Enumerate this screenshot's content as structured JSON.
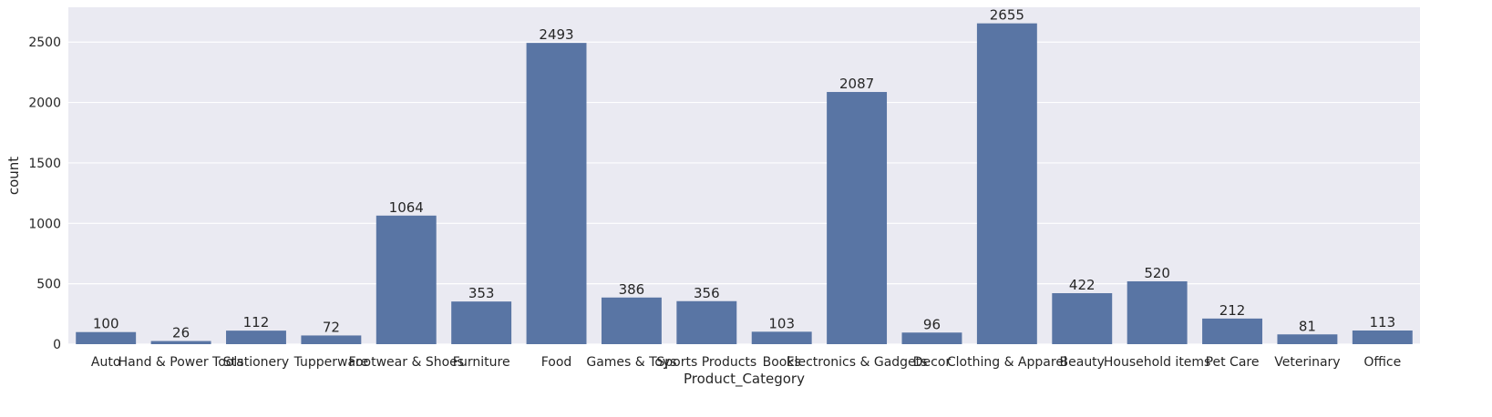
{
  "chart_data": {
    "type": "bar",
    "title": "",
    "xlabel": "Product_Category",
    "ylabel": "count",
    "categories": [
      "Auto",
      "Hand & Power Tools",
      "Stationery",
      "Tupperware",
      "Footwear & Shoes",
      "Furniture",
      "Food",
      "Games & Toys",
      "Sports Products",
      "Books",
      "Electronics & Gadgets",
      "Decor",
      "Clothing & Apparel",
      "Beauty",
      "Household items",
      "Pet Care",
      "Veterinary",
      "Office"
    ],
    "values": [
      100,
      26,
      112,
      72,
      1064,
      353,
      2493,
      386,
      356,
      103,
      2087,
      96,
      2655,
      422,
      520,
      212,
      81,
      113
    ],
    "value_labels": [
      "100",
      "26",
      "112",
      "72",
      "1064",
      "353",
      "2493",
      "386",
      "356",
      "103",
      "2087",
      "96",
      "2655",
      "422",
      "520",
      "212",
      "81",
      "113"
    ],
    "ylim": [
      0,
      2788
    ],
    "yticks": [
      0,
      500,
      1000,
      1500,
      2000,
      2500
    ],
    "ytick_labels": [
      "0",
      "500",
      "1000",
      "1500",
      "2000",
      "2500"
    ],
    "grid": true,
    "colors": {
      "bar": "#5975a4",
      "background": "#eaeaf2",
      "grid": "#ffffff",
      "text": "#262626"
    }
  }
}
